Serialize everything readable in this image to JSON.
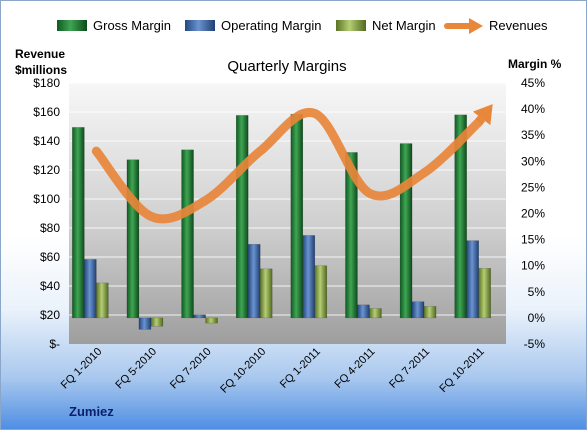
{
  "chart_data": {
    "type": "bar",
    "title": "Quarterly Margins",
    "company": "Zumiez",
    "y_left_label": [
      "Revenue",
      "$millions"
    ],
    "y_right_label": "Margin %",
    "y_left_ticks": [
      "$-",
      "$20",
      "$40",
      "$60",
      "$80",
      "$100",
      "$120",
      "$140",
      "$160",
      "$180"
    ],
    "y_right_ticks": [
      "-5%",
      "0%",
      "5%",
      "10%",
      "15%",
      "20%",
      "25%",
      "30%",
      "35%",
      "40%",
      "45%"
    ],
    "y_left_range": [
      0,
      180
    ],
    "y_right_range": [
      -5,
      45
    ],
    "categories": [
      "FQ 1-2010",
      "FQ 5-2010",
      "FQ 7-2010",
      "FQ 10-2010",
      "FQ 1-2011",
      "FQ 4-2011",
      "FQ 7-2011",
      "FQ 10-2011"
    ],
    "series": [
      {
        "name": "Gross Margin",
        "axis": "right",
        "kind": "bar",
        "color": "#2e8b3e",
        "values": [
          36.5,
          30.3,
          32.2,
          38.8,
          39.0,
          31.7,
          33.4,
          38.9
        ]
      },
      {
        "name": "Operating Margin",
        "axis": "right",
        "kind": "bar",
        "color": "#4a76b8",
        "values": [
          11.2,
          -2.2,
          0.6,
          14.1,
          15.8,
          2.5,
          3.1,
          14.8
        ]
      },
      {
        "name": "Net Margin",
        "axis": "right",
        "kind": "bar",
        "color": "#8fae4c",
        "values": [
          6.7,
          -1.6,
          -1.0,
          9.4,
          10.0,
          1.8,
          2.2,
          9.5
        ]
      },
      {
        "name": "Revenues",
        "axis": "left",
        "kind": "line",
        "color": "#e8863a",
        "values": [
          133,
          88,
          99,
          133,
          159,
          104,
          118,
          153
        ]
      }
    ],
    "grid": true,
    "legend_position": "top"
  }
}
